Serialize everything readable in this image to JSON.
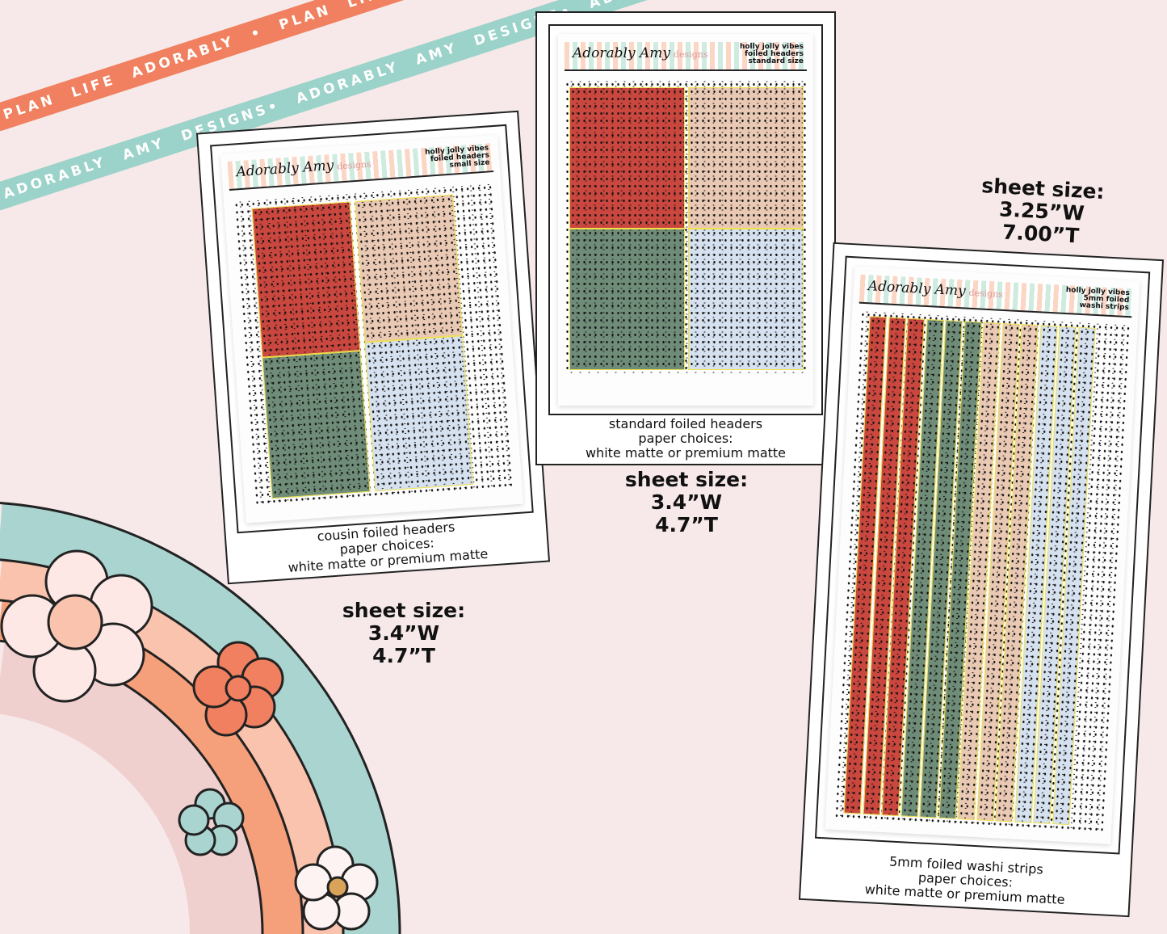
{
  "ribbons": {
    "coral": "PLAN LIFE ADORABLY • PLAN LIFE ADORABLY • PLAN LIFE ADORABLY",
    "teal": "ADORABLY AMY DESIGNS• ADORABLY AMY DESIGNS• ADORABLY AMY DESIGNS"
  },
  "brand": {
    "logo": "Adorably Amy",
    "logo_sub": "designs"
  },
  "colors": {
    "red": "#c9473f",
    "tan": "#e9c9b4",
    "green": "#6f8c78",
    "blue": "#d6e1f0",
    "foil": "#f1e24a",
    "background": "#f7e9e9"
  },
  "cards": [
    {
      "header": [
        "holly jolly vibes",
        "foiled headers",
        "small size"
      ],
      "caption": [
        "cousin foiled headers",
        "paper choices:",
        "white matte or premium matte"
      ],
      "size": [
        "sheet size:",
        "3.4”W",
        "4.7”T"
      ]
    },
    {
      "header": [
        "holly jolly vibes",
        "foiled headers",
        "standard size"
      ],
      "caption": [
        "standard foiled headers",
        "paper choices:",
        "white matte or premium matte"
      ],
      "size": [
        "sheet size:",
        "3.4”W",
        "4.7”T"
      ]
    },
    {
      "header": [
        "holly jolly vibes",
        "5mm foiled",
        "washi strips"
      ],
      "caption": [
        "5mm foiled washi strips",
        "paper choices:",
        "white matte or premium matte"
      ],
      "size": [
        "sheet size:",
        "3.25”W",
        "7.00”T"
      ]
    }
  ]
}
